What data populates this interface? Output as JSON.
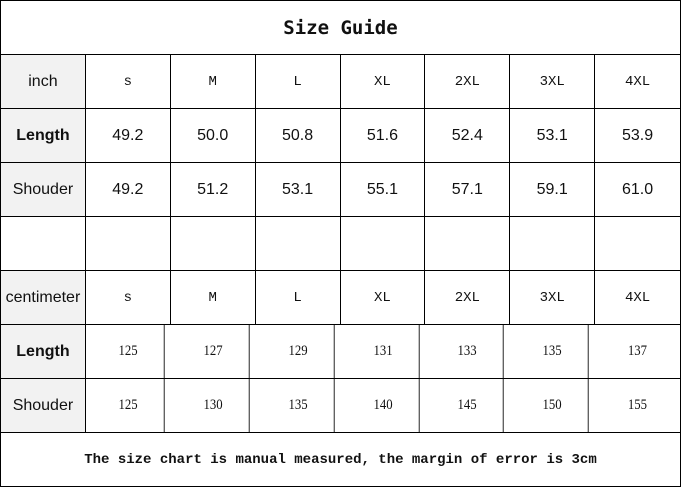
{
  "title": "Size Guide",
  "inch_section": {
    "unit_label": "inch",
    "sizes": [
      "s",
      "M",
      "L",
      "XL",
      "2XL",
      "3XL",
      "4XL"
    ],
    "rows": [
      {
        "label": "Length",
        "values": [
          "49.2",
          "50.0",
          "50.8",
          "51.6",
          "52.4",
          "53.1",
          "53.9"
        ]
      },
      {
        "label": "Shouder",
        "values": [
          "49.2",
          "51.2",
          "53.1",
          "55.1",
          "57.1",
          "59.1",
          "61.0"
        ]
      }
    ]
  },
  "cm_section": {
    "unit_label": "centimeter",
    "sizes": [
      "s",
      "M",
      "L",
      "XL",
      "2XL",
      "3XL",
      "4XL"
    ],
    "rows": [
      {
        "label": "Length",
        "values": [
          "125",
          "127",
          "129",
          "131",
          "133",
          "135",
          "137"
        ]
      },
      {
        "label": "Shouder",
        "values": [
          "125",
          "130",
          "135",
          "140",
          "145",
          "150",
          "155"
        ]
      }
    ]
  },
  "note": "The size chart is manual measured, the margin of error is 3cm",
  "colors": {
    "header_bg": "#f2f2f2",
    "border": "#000000"
  }
}
